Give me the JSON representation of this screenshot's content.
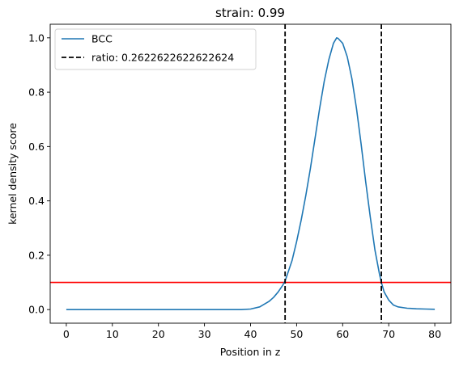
{
  "chart_data": {
    "type": "line",
    "title": "strain: 0.99",
    "xlabel": "Position in z",
    "ylabel": "kernel density score",
    "xlim": [
      -3.5,
      83.5
    ],
    "ylim": [
      -0.05,
      1.05
    ],
    "xticks": [
      0,
      10,
      20,
      30,
      40,
      50,
      60,
      70,
      80
    ],
    "xtick_labels": [
      "0",
      "10",
      "20",
      "30",
      "40",
      "50",
      "60",
      "70",
      "80"
    ],
    "yticks": [
      0.0,
      0.2,
      0.4,
      0.6,
      0.8,
      1.0
    ],
    "ytick_labels": [
      "0.0",
      "0.2",
      "0.4",
      "0.6",
      "0.8",
      "1.0"
    ],
    "grid": false,
    "legend_position": "top-left",
    "series": [
      {
        "name": "BCC",
        "color": "#1f77b4",
        "x": [
          0,
          10,
          20,
          30,
          38,
          40,
          42,
          44,
          45,
          46,
          47,
          47.5,
          48,
          49,
          50,
          51,
          52,
          53,
          54,
          55,
          56,
          57,
          58,
          58.7,
          59,
          60,
          61,
          62,
          63,
          64,
          65,
          66,
          67,
          68,
          68.4,
          69,
          70,
          71,
          72,
          74,
          76,
          78,
          80
        ],
        "y": [
          0.0,
          0.0,
          0.0,
          0.0,
          0.0,
          0.002,
          0.01,
          0.03,
          0.045,
          0.065,
          0.09,
          0.105,
          0.13,
          0.18,
          0.25,
          0.33,
          0.42,
          0.52,
          0.63,
          0.74,
          0.84,
          0.92,
          0.98,
          1.0,
          0.998,
          0.98,
          0.93,
          0.85,
          0.74,
          0.61,
          0.47,
          0.34,
          0.22,
          0.13,
          0.1,
          0.065,
          0.035,
          0.017,
          0.01,
          0.005,
          0.003,
          0.002,
          0.001
        ]
      }
    ],
    "vlines": [
      {
        "name": "ratio: 0.2622622622622624",
        "x": [
          47.5,
          68.4
        ],
        "color": "#000000",
        "style": "dashed"
      }
    ],
    "hlines": [
      {
        "y": 0.1,
        "color": "#ff0000"
      }
    ]
  }
}
